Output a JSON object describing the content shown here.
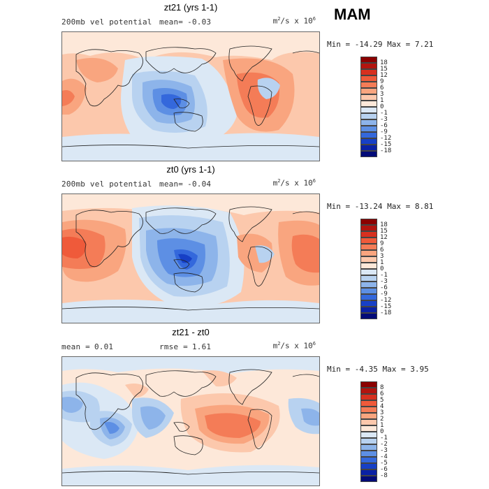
{
  "season": "MAM",
  "units_base": "m",
  "units_exp": "2",
  "units_mid": "/s x 10",
  "units_pow": "6",
  "panels": [
    {
      "title": "zt21 (yrs 1-1)",
      "left_label": "200mb vel potential",
      "stat_label": "mean=",
      "stat_value": "-0.03",
      "minmax": "Min = -14.29 Max =   7.21",
      "levels": [
        "18",
        "15",
        "12",
        "9",
        "6",
        "3",
        "1",
        "0",
        "-1",
        "-3",
        "-6",
        "-9",
        "-12",
        "-15",
        "-18"
      ],
      "colors": [
        "#8b0000",
        "#b2140f",
        "#d7301f",
        "#ef5a3a",
        "#f47c57",
        "#f9a57f",
        "#fcc8ac",
        "#fde8d9",
        "#dbe8f5",
        "#b8d2f0",
        "#8db4ea",
        "#5d8fe4",
        "#3468dc",
        "#1740c6",
        "#0a21a4",
        "#030b78"
      ]
    },
    {
      "title": "zt0 (yrs 1-1)",
      "left_label": "200mb vel potential",
      "stat_label": "mean=",
      "stat_value": "-0.04",
      "minmax": "Min = -13.24 Max =   8.81",
      "levels": [
        "18",
        "15",
        "12",
        "9",
        "6",
        "3",
        "1",
        "0",
        "-1",
        "-3",
        "-6",
        "-9",
        "-12",
        "-15",
        "-18"
      ],
      "colors": [
        "#8b0000",
        "#b2140f",
        "#d7301f",
        "#ef5a3a",
        "#f47c57",
        "#f9a57f",
        "#fcc8ac",
        "#fde8d9",
        "#dbe8f5",
        "#b8d2f0",
        "#8db4ea",
        "#5d8fe4",
        "#3468dc",
        "#1740c6",
        "#0a21a4",
        "#030b78"
      ]
    },
    {
      "title": "zt21 - zt0",
      "left_label": "mean =",
      "left_value": "0.01",
      "stat_label": "rmse =",
      "stat_value": "1.61",
      "minmax": "Min =  -4.35 Max =   3.95",
      "levels": [
        "8",
        "6",
        "5",
        "4",
        "3",
        "2",
        "1",
        "0",
        "-1",
        "-2",
        "-3",
        "-4",
        "-5",
        "-6",
        "-8"
      ],
      "colors": [
        "#8b0000",
        "#b2140f",
        "#d7301f",
        "#ef5a3a",
        "#f47c57",
        "#f9a57f",
        "#fcc8ac",
        "#fde8d9",
        "#dbe8f5",
        "#b8d2f0",
        "#8db4ea",
        "#5d8fe4",
        "#3468dc",
        "#1740c6",
        "#0a21a4",
        "#030b78"
      ]
    }
  ]
}
